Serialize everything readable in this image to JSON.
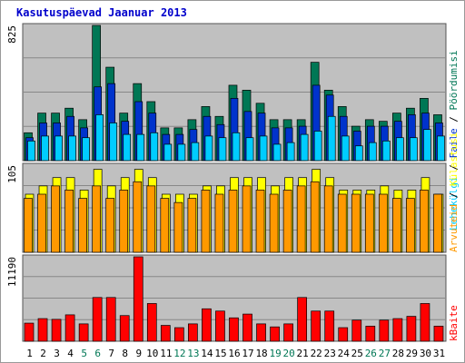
{
  "title": "Kasutuspäevad Jaanuar 2013",
  "chart_data": [
    {
      "type": "bar",
      "panel": "top",
      "ymax_label": "825",
      "categories": [
        "1",
        "2",
        "3",
        "4",
        "5",
        "6",
        "7",
        "8",
        "9",
        "10",
        "11",
        "12",
        "13",
        "14",
        "15",
        "16",
        "17",
        "18",
        "19",
        "20",
        "21",
        "22",
        "23",
        "24",
        "25",
        "26",
        "27",
        "28",
        "29",
        "30",
        "31"
      ],
      "weekend_days": [
        "5",
        "6",
        "12",
        "13",
        "19",
        "20",
        "26",
        "27"
      ],
      "ylim": [
        0,
        825
      ],
      "series": [
        {
          "name": "Pöördumisi",
          "color": "#007755",
          "values": [
            170,
            290,
            290,
            320,
            250,
            825,
            570,
            290,
            470,
            360,
            200,
            200,
            250,
            330,
            270,
            460,
            430,
            350,
            250,
            250,
            250,
            600,
            430,
            330,
            210,
            250,
            240,
            290,
            320,
            380,
            280
          ]
        },
        {
          "name": "Faile",
          "color": "#0033cc",
          "values": [
            140,
            230,
            230,
            270,
            200,
            450,
            470,
            240,
            360,
            290,
            160,
            160,
            190,
            270,
            220,
            380,
            300,
            290,
            200,
            200,
            210,
            460,
            400,
            270,
            180,
            210,
            210,
            240,
            280,
            290,
            230
          ]
        },
        {
          "name": "Lehekülgi",
          "color": "#00ccff",
          "values": [
            120,
            150,
            150,
            150,
            140,
            280,
            230,
            160,
            160,
            170,
            100,
            100,
            110,
            150,
            140,
            170,
            140,
            150,
            100,
            110,
            160,
            180,
            270,
            150,
            90,
            110,
            120,
            140,
            140,
            190,
            150
          ]
        }
      ]
    },
    {
      "type": "bar",
      "panel": "middle",
      "ymax_label": "105",
      "ylim": [
        0,
        105
      ],
      "series": [
        {
          "name": "Külastusi",
          "color": "#ffff00",
          "values": [
            70,
            80,
            90,
            90,
            75,
            100,
            80,
            90,
            100,
            90,
            70,
            70,
            70,
            80,
            80,
            90,
            90,
            90,
            80,
            90,
            90,
            100,
            90,
            75,
            75,
            75,
            80,
            75,
            75,
            90,
            70
          ]
        },
        {
          "name": "Arvuteid",
          "color": "#ff9900",
          "values": [
            65,
            70,
            80,
            75,
            65,
            80,
            65,
            75,
            85,
            80,
            65,
            60,
            65,
            75,
            70,
            75,
            80,
            75,
            70,
            75,
            80,
            85,
            80,
            70,
            70,
            70,
            70,
            65,
            65,
            75,
            70
          ]
        }
      ]
    },
    {
      "type": "bar",
      "panel": "bottom",
      "ymax_label": "11190",
      "ylim": [
        0,
        11190
      ],
      "series": [
        {
          "name": "kBaite",
          "color": "#ff0000",
          "values": [
            2400,
            3000,
            2900,
            3500,
            2300,
            5800,
            5800,
            3400,
            11190,
            5000,
            2100,
            1800,
            2300,
            4300,
            4000,
            3100,
            3600,
            2300,
            1900,
            2300,
            5800,
            4000,
            4000,
            1800,
            2800,
            2000,
            2800,
            3000,
            3300,
            5000,
            2000
          ]
        }
      ]
    }
  ]
}
